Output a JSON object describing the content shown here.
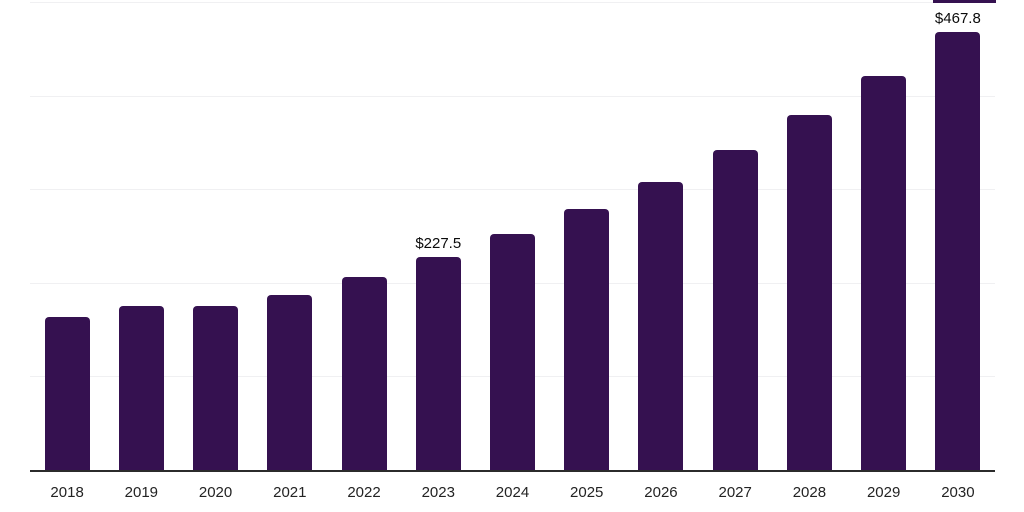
{
  "chart_data": {
    "type": "bar",
    "title": "",
    "xlabel": "",
    "ylabel": "",
    "categories": [
      "2018",
      "2019",
      "2020",
      "2021",
      "2022",
      "2023",
      "2024",
      "2025",
      "2026",
      "2027",
      "2028",
      "2029",
      "2030"
    ],
    "values": [
      163.1,
      175.4,
      174.9,
      187.0,
      206.2,
      227.5,
      251.8,
      278.5,
      308.0,
      341.6,
      379.3,
      421.0,
      467.8
    ],
    "value_labels": [
      "",
      "",
      "",
      "",
      "",
      "$227.5",
      "",
      "",
      "",
      "",
      "",
      "",
      "$467.8"
    ],
    "ylim": [
      0,
      500
    ],
    "grid_step": 100,
    "grid": true,
    "legend": false,
    "bar_color": "#351150",
    "grid_color": "#f0f0f2",
    "axis_color": "#2b2b2b",
    "value_label_color": "#0b0b0b",
    "tick_label_color": "#232323",
    "background_color": "#ffffff"
  }
}
